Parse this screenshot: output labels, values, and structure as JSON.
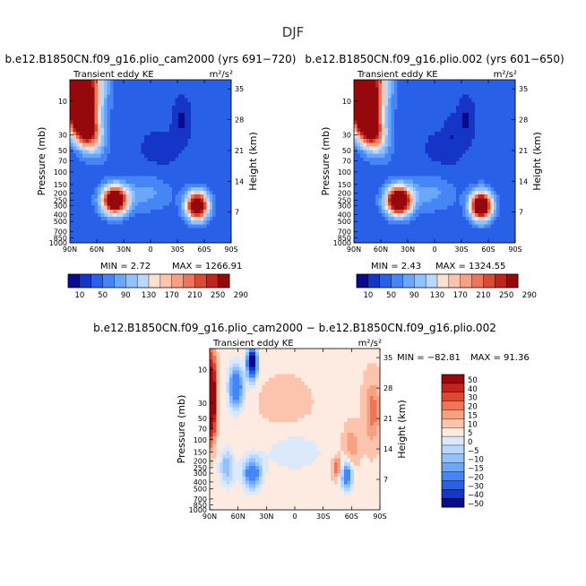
{
  "figure": {
    "title": "DJF"
  },
  "colors": {
    "positive_scale": [
      "#0a0a8c",
      "#1535c8",
      "#2860e8",
      "#4585f5",
      "#6aa6fa",
      "#92c2fd",
      "#bad8ff",
      "#fbe1d3",
      "#fcc4ad",
      "#f7a082",
      "#ee7658",
      "#dc4a33",
      "#c0241c",
      "#96080c"
    ],
    "diff_scale": [
      "#0a0a8c",
      "#1535c8",
      "#2860e8",
      "#4585f5",
      "#6aa6fa",
      "#92c2fd",
      "#bad8ff",
      "#dbe9fb",
      "#fdebe2",
      "#fcc4ad",
      "#f7a082",
      "#ee7658",
      "#dc4a33",
      "#c0241c",
      "#96080c"
    ]
  },
  "panels": [
    {
      "title": "b.e12.B1850CN.f09_g16.plio_cam2000 (yrs 691−720)",
      "left_label": "Transient eddy KE",
      "units": "m²/s²",
      "min_text": "MIN =    2.72",
      "max_text": "MAX =  1266.91"
    },
    {
      "title": "b.e12.B1850CN.f09_g16.plio.002 (yrs 601−650)",
      "left_label": "Transient eddy KE",
      "units": "m²/s²",
      "min_text": "MIN =    2.43",
      "max_text": "MAX =  1324.55"
    },
    {
      "title": "b.e12.B1850CN.f09_g16.plio_cam2000 − b.e12.B1850CN.f09_g16.plio.002",
      "left_label": "Transient eddy KE",
      "units": "m²/s²",
      "min_text": "MIN =  −82.81",
      "max_text": "MAX =   91.36"
    }
  ],
  "chart_data": [
    {
      "type": "heatmap",
      "title": "b.e12.B1850CN.f09_g16.plio_cam2000 (yrs 691−720)",
      "xlabel": "",
      "ylabel": "Pressure (mb)",
      "y2label": "Height (km)",
      "x_ticklabels": [
        "90N",
        "60N",
        "30N",
        "0",
        "30S",
        "60S",
        "90S"
      ],
      "y_ticklabels": [
        "10",
        "30",
        "50",
        "70",
        "100",
        "150",
        "200",
        "250",
        "300",
        "400",
        "500",
        "700",
        "850",
        "1000"
      ],
      "y2_ticklabels": [
        "35",
        "28",
        "21",
        "14",
        "7"
      ],
      "colorbar_levels": [
        "10",
        "50",
        "90",
        "130",
        "170",
        "210",
        "250",
        "290"
      ],
      "min": 2.72,
      "max": 1266.91,
      "features": [
        {
          "desc": "stratospheric maximum",
          "lat": 75,
          "pressure": 10,
          "value": "> 290"
        },
        {
          "desc": "NH jet-level maximum",
          "lat": 40,
          "pressure": 250,
          "value": "~290"
        },
        {
          "desc": "SH jet-level maximum",
          "lat": -50,
          "pressure": 300,
          "value": "~290"
        },
        {
          "desc": "stratospheric minimum",
          "lat": -35,
          "pressure": 20,
          "value": "< 10"
        }
      ]
    },
    {
      "type": "heatmap",
      "title": "b.e12.B1850CN.f09_g16.plio.002 (yrs 601−650)",
      "xlabel": "",
      "ylabel": "Pressure (mb)",
      "y2label": "Height (km)",
      "x_ticklabels": [
        "90N",
        "60N",
        "30N",
        "0",
        "30S",
        "60S",
        "90S"
      ],
      "y_ticklabels": [
        "10",
        "30",
        "50",
        "70",
        "100",
        "150",
        "200",
        "250",
        "300",
        "400",
        "500",
        "700",
        "850",
        "1000"
      ],
      "y2_ticklabels": [
        "35",
        "28",
        "21",
        "14",
        "7"
      ],
      "colorbar_levels": [
        "10",
        "50",
        "90",
        "130",
        "170",
        "210",
        "250",
        "290"
      ],
      "min": 2.43,
      "max": 1324.55,
      "features": [
        {
          "desc": "stratospheric maximum",
          "lat": 75,
          "pressure": 10,
          "value": "> 290"
        },
        {
          "desc": "NH jet-level maximum",
          "lat": 40,
          "pressure": 250,
          "value": "~290"
        },
        {
          "desc": "SH jet-level maximum",
          "lat": -50,
          "pressure": 300,
          "value": "~290"
        },
        {
          "desc": "stratospheric minimum",
          "lat": -35,
          "pressure": 20,
          "value": "< 10"
        }
      ]
    },
    {
      "type": "heatmap",
      "title": "b.e12.B1850CN.f09_g16.plio_cam2000 − b.e12.B1850CN.f09_g16.plio.002",
      "xlabel": "",
      "ylabel": "Pressure (mb)",
      "y2label": "Height (km)",
      "x_ticklabels": [
        "90N",
        "60N",
        "30N",
        "0",
        "30S",
        "60S",
        "90S"
      ],
      "y_ticklabels": [
        "10",
        "30",
        "50",
        "70",
        "100",
        "150",
        "200",
        "250",
        "300",
        "400",
        "500",
        "700",
        "850",
        "1000"
      ],
      "y2_ticklabels": [
        "35",
        "28",
        "21",
        "14",
        "7"
      ],
      "colorbar_levels": [
        "50",
        "40",
        "30",
        "20",
        "15",
        "10",
        "5",
        "0",
        "−5",
        "−10",
        "−15",
        "−20",
        "−30",
        "−40",
        "−50"
      ],
      "min": -82.81,
      "max": 91.36,
      "features": [
        {
          "desc": "positive anomaly near pole",
          "lat": 88,
          "pressure": 30,
          "value": "> 50"
        },
        {
          "desc": "negative anomaly",
          "lat": 60,
          "pressure": 20,
          "value": "~ -40"
        },
        {
          "desc": "negative anomaly",
          "lat": 45,
          "pressure": 10,
          "value": "< -50"
        },
        {
          "desc": "negative anomaly",
          "lat": 45,
          "pressure": 300,
          "value": "~ -30"
        },
        {
          "desc": "negative anomaly",
          "lat": -55,
          "pressure": 300,
          "value": "~ -30"
        },
        {
          "desc": "positive anomaly",
          "lat": -80,
          "pressure": 40,
          "value": "~ 15"
        }
      ]
    }
  ]
}
